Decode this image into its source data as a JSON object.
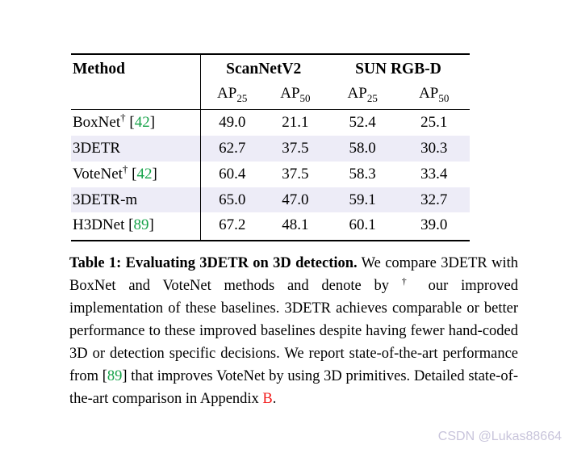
{
  "table": {
    "header": {
      "method": "Method",
      "group1": "ScanNetV2",
      "group2": "SUN RGB-D"
    },
    "subheader": [
      {
        "label": "AP",
        "sub": "25"
      },
      {
        "label": "AP",
        "sub": "50"
      },
      {
        "label": "AP",
        "sub": "25"
      },
      {
        "label": "AP",
        "sub": "50"
      }
    ],
    "rows": [
      {
        "method": "BoxNet",
        "dagger": "†",
        "cite_open": " [",
        "cite_num": "42",
        "cite_close": "]",
        "v1": "49.0",
        "v2": "21.1",
        "v3": "52.4",
        "v4": "25.1",
        "highlight": false
      },
      {
        "method": "3DETR",
        "v1": "62.7",
        "v2": "37.5",
        "v3": "58.0",
        "v4": "30.3",
        "highlight": true
      },
      {
        "method": "VoteNet",
        "dagger": "†",
        "cite_open": " [",
        "cite_num": "42",
        "cite_close": "]",
        "v1": "60.4",
        "v2": "37.5",
        "v3": "58.3",
        "v4": "33.4",
        "highlight": false
      },
      {
        "method": "3DETR-m",
        "v1": "65.0",
        "v2": "47.0",
        "v3": "59.1",
        "v4": "32.7",
        "highlight": true
      },
      {
        "method": "H3DNet",
        "cite_open": " [",
        "cite_num": "89",
        "cite_close": "]",
        "v1": "67.2",
        "v2": "48.1",
        "v3": "60.1",
        "v4": "39.0",
        "highlight": false
      }
    ]
  },
  "caption": {
    "segments": [
      {
        "text": "Table 1: Evaluating 3DETR on 3D detection."
      },
      {
        "text": " We compare 3DETR with BoxNet and VoteNet methods and denote by "
      },
      {
        "text": "†"
      },
      {
        "text": " our improved implementation of these baselines. 3DETR achieves comparable or better performance to these improved baselines despite having fewer hand-coded 3D or detection specific decisions. We report state-of-the-art performance from ["
      },
      {
        "text": "89"
      },
      {
        "text": "] that improves VoteNet by using 3D primitives. Detailed state-of-the-art comparison in Appendix "
      },
      {
        "text": "B"
      },
      {
        "text": "."
      }
    ]
  },
  "watermark": "CSDN @Lukas88664",
  "colors": {
    "highlight_row": "#edecf7",
    "citation_green": "#17a34a",
    "link_red": "#f21b1b",
    "watermark": "#c8c4db"
  }
}
